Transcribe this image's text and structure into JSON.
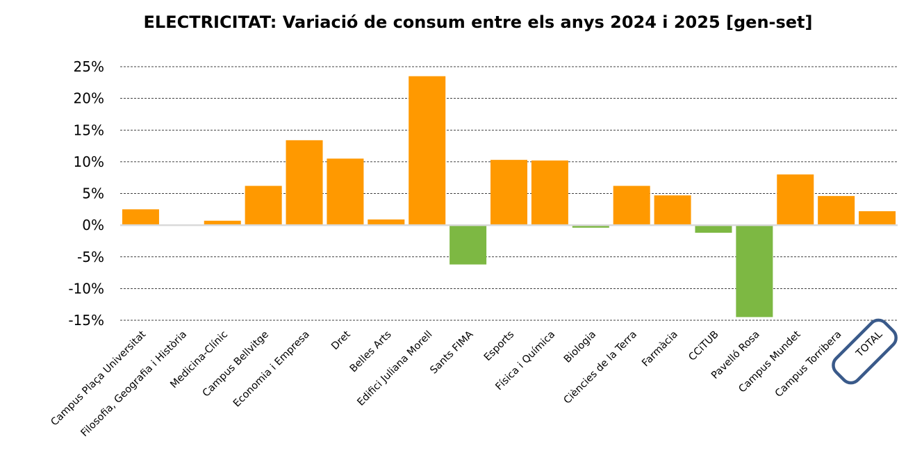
{
  "chart_data": {
    "type": "bar",
    "title": "ELECTRICITAT: Variació de consum entre els anys 2024 i 2025 [gen-set]",
    "xlabel": "",
    "ylabel": "",
    "ylim": [
      -15,
      25
    ],
    "yticks": [
      25,
      20,
      15,
      10,
      5,
      0,
      -5,
      -10,
      -15
    ],
    "ytick_labels": [
      "25%",
      "20%",
      "15%",
      "10%",
      "5%",
      "0%",
      "-5%",
      "-10%",
      "-15%"
    ],
    "grid": true,
    "categories": [
      "Campus Plaça Universitat",
      "Filosofia, Geografia i Història",
      "Medicina-Clínic",
      "Campus Bellvitge",
      "Economia i Empresa",
      "Dret",
      "Belles Arts",
      "Edifici Juliana Morell",
      "Sants FIMA",
      "Esports",
      "Física i Química",
      "Biologia",
      "Ciències de la Terra",
      "Farmàcia",
      "CCiTUB",
      "Pavelló Rosa",
      "Campus Mundet",
      "Campus Torribera",
      "TOTAL"
    ],
    "values": [
      2.5,
      0.1,
      0.7,
      6.2,
      13.4,
      10.5,
      0.9,
      23.5,
      -6.2,
      10.3,
      10.2,
      -0.4,
      6.2,
      4.7,
      -1.2,
      -14.5,
      8.0,
      4.6,
      2.2
    ],
    "colors": {
      "increase": "#FF9900",
      "decrease": "#7DB843",
      "highlight_outline": "#3A5A8A",
      "axis": "#D9D9D9"
    },
    "highlighted_category": "TOTAL"
  }
}
